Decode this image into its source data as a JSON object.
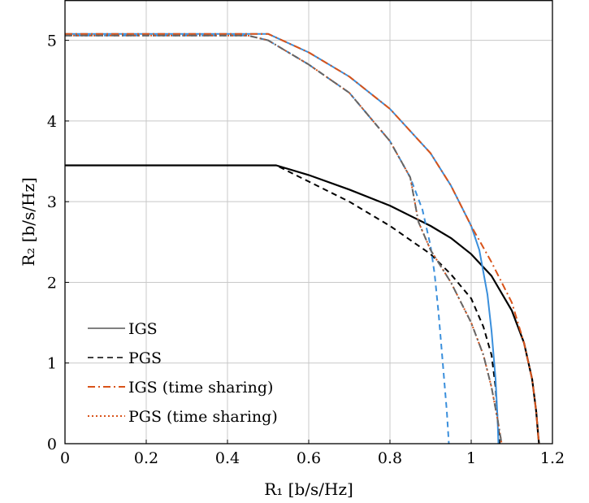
{
  "chart_data": {
    "type": "line",
    "title": "",
    "xlabel": "R₁ [b/s/Hz]",
    "ylabel": "R₂ [b/s/Hz]",
    "xlim": [
      0,
      1.2
    ],
    "ylim": [
      0,
      5.5
    ],
    "x_ticks": [
      "0",
      "0.2",
      "0.4",
      "0.6",
      "0.8",
      "1",
      "1.2"
    ],
    "y_ticks": [
      "0",
      "1",
      "2",
      "3",
      "4",
      "5"
    ],
    "grid": true,
    "legend_position": "bottom-left",
    "legend": [
      {
        "label": "IGS",
        "style": "solid",
        "color": "#808080"
      },
      {
        "label": "PGS",
        "style": "dashed",
        "color": "#404040"
      },
      {
        "label": "IGS (time sharing)",
        "style": "dashdot",
        "color": "#d95319"
      },
      {
        "label": "PGS (time sharing)",
        "style": "dotted",
        "color": "#d95319"
      }
    ],
    "series": [
      {
        "style": "solid",
        "color": "#000000",
        "points": [
          [
            0,
            3.45
          ],
          [
            0.52,
            3.45
          ],
          [
            0.6,
            3.33
          ],
          [
            0.7,
            3.15
          ],
          [
            0.8,
            2.95
          ],
          [
            0.9,
            2.7
          ],
          [
            0.95,
            2.55
          ],
          [
            1.0,
            2.35
          ],
          [
            1.05,
            2.08
          ],
          [
            1.1,
            1.65
          ],
          [
            1.13,
            1.25
          ],
          [
            1.15,
            0.8
          ],
          [
            1.16,
            0.4
          ],
          [
            1.165,
            0.1
          ],
          [
            1.167,
            0
          ]
        ]
      },
      {
        "style": "dashed",
        "color": "#000000",
        "points": [
          [
            0,
            3.45
          ],
          [
            0.52,
            3.45
          ],
          [
            0.6,
            3.25
          ],
          [
            0.7,
            3.0
          ],
          [
            0.8,
            2.7
          ],
          [
            0.9,
            2.35
          ],
          [
            0.95,
            2.1
          ],
          [
            1.0,
            1.8
          ],
          [
            1.03,
            1.45
          ],
          [
            1.05,
            1.1
          ],
          [
            1.06,
            0.7
          ],
          [
            1.065,
            0.3
          ],
          [
            1.07,
            0
          ]
        ]
      },
      {
        "style": "solid",
        "color": "#3a8fdc",
        "points": [
          [
            0,
            5.08
          ],
          [
            0.5,
            5.08
          ],
          [
            0.6,
            4.85
          ],
          [
            0.7,
            4.55
          ],
          [
            0.8,
            4.15
          ],
          [
            0.9,
            3.6
          ],
          [
            0.95,
            3.2
          ],
          [
            1.0,
            2.7
          ],
          [
            1.02,
            2.4
          ],
          [
            1.04,
            1.85
          ],
          [
            1.05,
            1.4
          ],
          [
            1.06,
            0.8
          ],
          [
            1.065,
            0.3
          ],
          [
            1.067,
            0
          ]
        ]
      },
      {
        "style": "dashed",
        "color": "#3a8fdc",
        "points": [
          [
            0,
            5.06
          ],
          [
            0.45,
            5.06
          ],
          [
            0.5,
            5.0
          ],
          [
            0.6,
            4.7
          ],
          [
            0.7,
            4.35
          ],
          [
            0.8,
            3.75
          ],
          [
            0.85,
            3.3
          ],
          [
            0.88,
            2.9
          ],
          [
            0.9,
            2.45
          ],
          [
            0.91,
            2.1
          ],
          [
            0.92,
            1.6
          ],
          [
            0.93,
            1.0
          ],
          [
            0.94,
            0.4
          ],
          [
            0.945,
            0
          ]
        ]
      },
      {
        "style": "dashdot",
        "color": "#d95319",
        "points": [
          [
            0,
            5.08
          ],
          [
            0.5,
            5.08
          ],
          [
            0.6,
            4.85
          ],
          [
            0.7,
            4.55
          ],
          [
            0.8,
            4.15
          ],
          [
            0.9,
            3.6
          ],
          [
            0.95,
            3.2
          ],
          [
            1.0,
            2.7
          ],
          [
            1.05,
            2.25
          ],
          [
            1.1,
            1.75
          ],
          [
            1.13,
            1.25
          ],
          [
            1.15,
            0.8
          ],
          [
            1.16,
            0.4
          ],
          [
            1.165,
            0.1
          ],
          [
            1.167,
            0
          ]
        ]
      },
      {
        "style": "dotted",
        "color": "#d95319",
        "points": [
          [
            0,
            5.06
          ],
          [
            0.45,
            5.06
          ],
          [
            0.5,
            5.0
          ],
          [
            0.6,
            4.7
          ],
          [
            0.7,
            4.35
          ],
          [
            0.8,
            3.75
          ],
          [
            0.85,
            3.3
          ],
          [
            0.87,
            2.75
          ],
          [
            0.9,
            2.4
          ],
          [
            0.95,
            2.0
          ],
          [
            1.0,
            1.5
          ],
          [
            1.03,
            1.1
          ],
          [
            1.05,
            0.7
          ],
          [
            1.065,
            0.3
          ],
          [
            1.075,
            0
          ]
        ]
      },
      {
        "style": "dashdot",
        "color": "#666666",
        "points": [
          [
            0,
            5.06
          ],
          [
            0.45,
            5.06
          ],
          [
            0.5,
            5.0
          ],
          [
            0.6,
            4.7
          ],
          [
            0.7,
            4.35
          ],
          [
            0.8,
            3.75
          ],
          [
            0.85,
            3.3
          ],
          [
            0.87,
            2.75
          ],
          [
            0.9,
            2.4
          ],
          [
            0.95,
            2.0
          ],
          [
            1.0,
            1.5
          ],
          [
            1.03,
            1.1
          ],
          [
            1.05,
            0.7
          ],
          [
            1.065,
            0.3
          ],
          [
            1.075,
            0
          ]
        ]
      }
    ]
  }
}
